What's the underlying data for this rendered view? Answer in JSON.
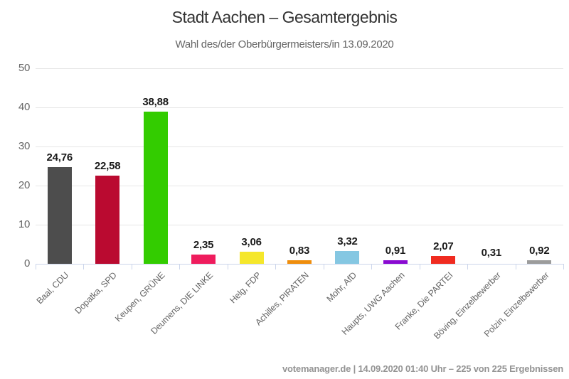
{
  "chart_data": {
    "type": "bar",
    "title": "Stadt Aachen – Gesamtergebnis",
    "subtitle": "Wahl des/der Oberbürgermeisters/in 13.09.2020",
    "categories": [
      "Baal, CDU",
      "Dopatka, SPD",
      "Keupen, GRÜNE",
      "Deumens, DIE LINKE",
      "Helg, FDP",
      "Achilles, PIRATEN",
      "Mohr, AfD",
      "Haupts, UWG Aachen",
      "Franke, Die PARTEI",
      "Böving, Einzelbewerber",
      "Polzin, Einzelbewerber"
    ],
    "values": [
      24.76,
      22.58,
      38.88,
      2.35,
      3.06,
      0.83,
      3.32,
      0.91,
      2.07,
      0.31,
      0.92
    ],
    "value_labels": [
      "24,76",
      "22,58",
      "38,88",
      "2,35",
      "3,06",
      "0,83",
      "3,32",
      "0,91",
      "2,07",
      "0,31",
      "0,92"
    ],
    "bar_colors": [
      "#4d4d4d",
      "#ba0a30",
      "#33cc00",
      "#ef1c5d",
      "#f5e72b",
      "#ef8e0e",
      "#85c7e2",
      "#8a0ad1",
      "#f02b20",
      "#ffffff",
      "#9c9c9c"
    ],
    "xlabel": "",
    "ylabel": "",
    "ylim": [
      0,
      50
    ],
    "yticks": [
      "0",
      "10",
      "20",
      "30",
      "40",
      "50"
    ],
    "grid": "horizontal",
    "legend": "none"
  },
  "footer": {
    "source": "votemanager.de",
    "separator": " | ",
    "info": "14.09.2020 01:40 Uhr – 225 von 225 Ergebnissen"
  },
  "colors": {
    "grid": "#e6e6e6",
    "axis": "#ccd6eb",
    "axis_label": "#666666",
    "title": "#333333",
    "subtitle": "#666666",
    "value_label": "#1a1a1a",
    "footer": "#949494",
    "background": "#ffffff"
  }
}
